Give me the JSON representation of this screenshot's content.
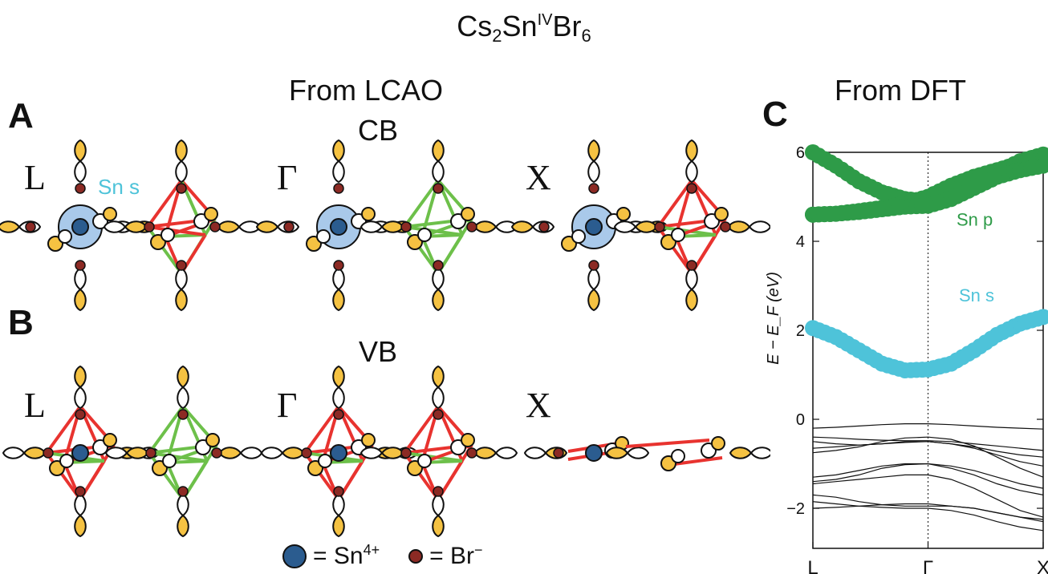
{
  "title": {
    "base": "Cs",
    "sub1": "2",
    "mid": "Sn",
    "sup": "IV",
    "end": "Br",
    "sub2": "6"
  },
  "headers": {
    "lcao": "From LCAO",
    "dft": "From DFT",
    "cb": "CB",
    "vb": "VB"
  },
  "panels": {
    "a": "A",
    "b": "B",
    "c": "C"
  },
  "kpoints": {
    "L": "L",
    "Gamma": "Γ",
    "X": "X"
  },
  "cb_label": "Sn s",
  "legend": {
    "sn": "= Sn",
    "sn_sup": "4+",
    "br": "= Br",
    "br_sup": "−"
  },
  "colors": {
    "sn_s": "#4ec3d9",
    "sn_p": "#2e9b48",
    "bond_red": "#e8332f",
    "bond_green": "#6dc04a",
    "br_lobe": "#f5c242",
    "sn_atom": "#2b5c8f",
    "br_atom": "#8c2a24",
    "sn_s_orbital": "#a9c9ea"
  },
  "chart_data": {
    "type": "line",
    "xlabel": "",
    "ylabel": "E − E_F (eV)",
    "x_ticks": [
      "L",
      "Γ",
      "X"
    ],
    "ylim": [
      -2.9,
      6.0
    ],
    "y_ticks": [
      -2,
      0,
      2,
      4,
      6
    ],
    "annotations": [
      {
        "text": "Sn p",
        "color": "#2e9b48"
      },
      {
        "text": "Sn s",
        "color": "#4ec3d9"
      }
    ],
    "x": [
      0,
      0.2,
      0.4,
      0.6,
      0.8,
      1.0,
      1.2,
      1.4,
      1.6,
      1.8,
      2.0
    ],
    "series": [
      {
        "role": "sn_s",
        "values": [
          2.05,
          1.85,
          1.55,
          1.25,
          1.1,
          1.12,
          1.25,
          1.55,
          1.9,
          2.15,
          2.3
        ]
      },
      {
        "role": "sn_p_1",
        "values": [
          6.0,
          5.7,
          5.35,
          5.1,
          4.95,
          4.9,
          5.05,
          5.3,
          5.55,
          5.8,
          5.95
        ]
      },
      {
        "role": "sn_p_2",
        "values": [
          4.6,
          4.62,
          4.68,
          4.75,
          4.85,
          5.0,
          5.25,
          5.45,
          5.6,
          5.75,
          5.85
        ]
      },
      {
        "role": "sn_p_3",
        "values": [
          4.6,
          4.62,
          4.66,
          4.72,
          4.78,
          4.8,
          4.95,
          5.2,
          5.45,
          5.6,
          5.7
        ]
      },
      {
        "role": "band",
        "values": [
          -0.2,
          -0.18,
          -0.15,
          -0.12,
          -0.1,
          -0.1,
          -0.12,
          -0.15,
          -0.18,
          -0.2,
          -0.22
        ]
      },
      {
        "role": "band",
        "values": [
          -0.4,
          -0.42,
          -0.45,
          -0.47,
          -0.48,
          -0.48,
          -0.5,
          -0.55,
          -0.6,
          -0.65,
          -0.7
        ]
      },
      {
        "role": "band",
        "values": [
          -0.5,
          -0.55,
          -0.58,
          -0.55,
          -0.5,
          -0.5,
          -0.55,
          -0.62,
          -0.72,
          -0.8,
          -0.85
        ]
      },
      {
        "role": "band",
        "values": [
          -0.65,
          -0.62,
          -0.58,
          -0.55,
          -0.52,
          -0.5,
          -0.55,
          -0.65,
          -0.8,
          -0.95,
          -1.05
        ]
      },
      {
        "role": "band",
        "values": [
          -0.75,
          -0.7,
          -0.62,
          -0.5,
          -0.42,
          -0.4,
          -0.45,
          -0.6,
          -0.85,
          -1.1,
          -1.3
        ]
      },
      {
        "role": "band",
        "values": [
          -1.3,
          -1.25,
          -1.15,
          -1.05,
          -1.0,
          -1.0,
          -1.05,
          -1.15,
          -1.3,
          -1.45,
          -1.55
        ]
      },
      {
        "role": "band",
        "values": [
          -1.4,
          -1.35,
          -1.25,
          -1.1,
          -1.02,
          -1.0,
          -1.1,
          -1.25,
          -1.45,
          -1.6,
          -1.7
        ]
      },
      {
        "role": "band",
        "values": [
          -1.45,
          -1.4,
          -1.35,
          -1.3,
          -1.25,
          -1.25,
          -1.35,
          -1.55,
          -1.8,
          -2.05,
          -2.2
        ]
      },
      {
        "role": "band",
        "values": [
          -1.7,
          -1.75,
          -1.85,
          -1.92,
          -1.95,
          -1.95,
          -1.95,
          -2.0,
          -2.1,
          -2.2,
          -2.3
        ]
      },
      {
        "role": "band",
        "values": [
          -1.85,
          -1.9,
          -1.95,
          -1.98,
          -2.0,
          -2.0,
          -2.05,
          -2.15,
          -2.3,
          -2.42,
          -2.5
        ]
      },
      {
        "role": "band",
        "values": [
          -2.0,
          -1.98,
          -1.95,
          -1.92,
          -1.9,
          -1.9,
          -1.95,
          -2.0,
          -2.1,
          -2.2,
          -2.25
        ]
      }
    ]
  }
}
